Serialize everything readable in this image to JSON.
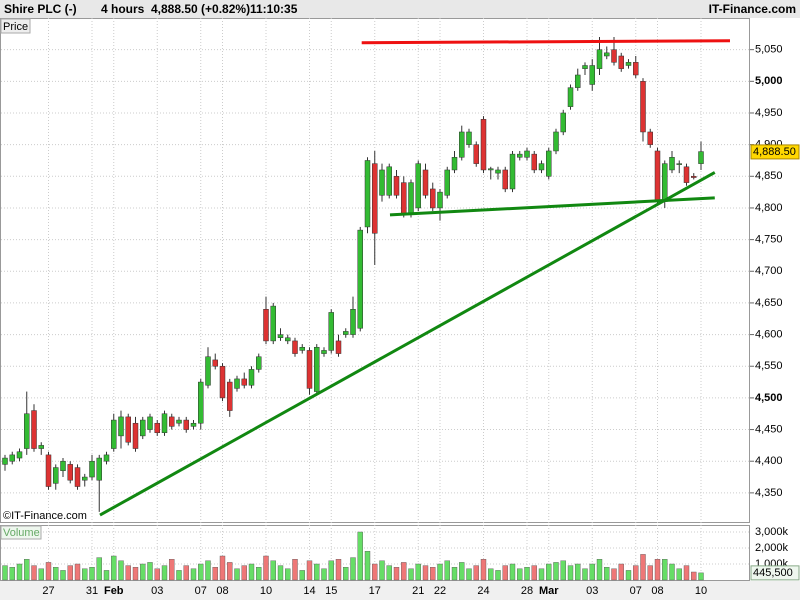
{
  "chart_data": {
    "type": "candlestick",
    "header": {
      "title": "Shire PLC (-)",
      "interval": "4 hours",
      "quote": "4,888.50 (+0.82%)",
      "time": "11:10:35",
      "brand": "IT-Finance.com"
    },
    "panel_label": "Price",
    "volume_label": "Volume",
    "watermark": "©IT-Finance.com",
    "categories": [
      null,
      null,
      null,
      null,
      null,
      null,
      "27",
      null,
      null,
      null,
      null,
      null,
      "31",
      null,
      null,
      "Feb",
      null,
      null,
      null,
      null,
      null,
      "03",
      null,
      null,
      null,
      null,
      null,
      "07",
      null,
      null,
      "08",
      null,
      null,
      null,
      null,
      null,
      "10",
      null,
      null,
      null,
      null,
      null,
      "14",
      null,
      null,
      "15",
      null,
      null,
      null,
      null,
      null,
      "17",
      null,
      null,
      null,
      null,
      null,
      "21",
      null,
      null,
      "22",
      null,
      null,
      null,
      null,
      null,
      "24",
      null,
      null,
      null,
      null,
      null,
      "28",
      null,
      null,
      "Mar",
      null,
      null,
      null,
      null,
      null,
      "03",
      null,
      null,
      null,
      null,
      null,
      "07",
      null,
      null,
      "08",
      null,
      null,
      null,
      null,
      null,
      "10"
    ],
    "open": [
      4395,
      4400,
      4405,
      4420,
      4480,
      4420,
      4410,
      4365,
      4385,
      4395,
      4390,
      4370,
      4375,
      4370,
      4400,
      4420,
      4440,
      4470,
      4460,
      4440,
      4450,
      4460,
      4445,
      4470,
      4460,
      4465,
      4455,
      4460,
      4520,
      4560,
      4550,
      4525,
      4515,
      4530,
      4520,
      4545,
      4640,
      4590,
      4595,
      4590,
      4590,
      4575,
      4575,
      4510,
      4570,
      4575,
      4590,
      4600,
      4600,
      4610,
      4770,
      4870,
      4820,
      4820,
      4850,
      4840,
      4790,
      4800,
      4860,
      4830,
      4800,
      4820,
      4860,
      4880,
      4900,
      4900,
      4940,
      4860,
      4855,
      4860,
      4830,
      4880,
      4880,
      4885,
      4860,
      4850,
      4890,
      4920,
      4960,
      4990,
      5020,
      4995,
      5020,
      5040,
      5050,
      5040,
      5025,
      5030,
      5000,
      4920,
      4890,
      4810,
      4860,
      4870,
      4865,
      4850,
      4870
    ],
    "high": [
      4410,
      4415,
      4420,
      4510,
      4490,
      4430,
      4415,
      4395,
      4405,
      4400,
      4395,
      4380,
      4410,
      4410,
      4415,
      4475,
      4480,
      4475,
      4470,
      4470,
      4475,
      4465,
      4480,
      4475,
      4470,
      4470,
      4465,
      4530,
      4580,
      4570,
      4555,
      4530,
      4535,
      4540,
      4550,
      4570,
      4660,
      4650,
      4610,
      4600,
      4595,
      4585,
      4580,
      4585,
      4580,
      4640,
      4600,
      4610,
      4660,
      4770,
      4880,
      4890,
      4870,
      4870,
      4860,
      4850,
      4845,
      4875,
      4870,
      4840,
      4830,
      4865,
      4890,
      4930,
      4925,
      4905,
      4945,
      4865,
      4865,
      4865,
      4890,
      4890,
      4895,
      4890,
      4875,
      4895,
      4925,
      4955,
      4995,
      5020,
      5030,
      5035,
      5070,
      5055,
      5070,
      5045,
      5035,
      5040,
      5005,
      4925,
      4895,
      4875,
      4890,
      4875,
      4870,
      4855,
      4905
    ],
    "low": [
      4385,
      4395,
      4400,
      4410,
      4415,
      4410,
      4355,
      4355,
      4375,
      4365,
      4355,
      4360,
      4370,
      4320,
      4395,
      4415,
      4420,
      4425,
      4415,
      4435,
      4445,
      4440,
      4440,
      4450,
      4455,
      4445,
      4450,
      4450,
      4515,
      4545,
      4495,
      4470,
      4510,
      4515,
      4515,
      4540,
      4585,
      4585,
      4590,
      4585,
      4565,
      4570,
      4505,
      4505,
      4565,
      4570,
      4565,
      4595,
      4595,
      4605,
      4760,
      4710,
      4810,
      4815,
      4815,
      4785,
      4785,
      4795,
      4815,
      4795,
      4780,
      4815,
      4855,
      4875,
      4895,
      4865,
      4855,
      4845,
      4845,
      4825,
      4825,
      4875,
      4875,
      4855,
      4855,
      4845,
      4885,
      4915,
      4955,
      4985,
      5010,
      4985,
      5010,
      5035,
      5025,
      5015,
      5020,
      5005,
      4905,
      4895,
      4805,
      4800,
      4855,
      4855,
      4835,
      4845,
      4860
    ],
    "close": [
      4405,
      4410,
      4415,
      4475,
      4420,
      4425,
      4360,
      4390,
      4400,
      4370,
      4360,
      4375,
      4400,
      4405,
      4410,
      4465,
      4470,
      4430,
      4420,
      4465,
      4470,
      4445,
      4475,
      4455,
      4465,
      4450,
      4460,
      4525,
      4565,
      4550,
      4500,
      4480,
      4530,
      4520,
      4545,
      4565,
      4590,
      4645,
      4600,
      4595,
      4570,
      4580,
      4515,
      4580,
      4575,
      4635,
      4570,
      4605,
      4640,
      4765,
      4875,
      4760,
      4860,
      4865,
      4820,
      4790,
      4840,
      4870,
      4820,
      4800,
      4825,
      4860,
      4880,
      4920,
      4920,
      4870,
      4860,
      4862,
      4860,
      4830,
      4885,
      4885,
      4890,
      4860,
      4870,
      4890,
      4920,
      4950,
      4990,
      5010,
      5025,
      5025,
      5050,
      5045,
      5030,
      5020,
      5030,
      5010,
      4920,
      4900,
      4810,
      4870,
      4880,
      4870,
      4840,
      4848,
      4889
    ],
    "volumes": [
      900000,
      800000,
      1000000,
      1300000,
      900000,
      700000,
      1100000,
      800000,
      600000,
      900000,
      1000000,
      700000,
      800000,
      1400000,
      600000,
      1500000,
      1200000,
      900000,
      800000,
      1000000,
      1100000,
      700000,
      900000,
      1300000,
      600000,
      900000,
      700000,
      1000000,
      1200000,
      800000,
      1500000,
      1100000,
      700000,
      900000,
      1000000,
      800000,
      1500000,
      1200000,
      900000,
      700000,
      1300000,
      600000,
      1200000,
      1000000,
      700000,
      1200000,
      1300000,
      800000,
      1400000,
      3000000,
      1800000,
      1000000,
      1200000,
      900000,
      800000,
      1100000,
      700000,
      1000000,
      900000,
      800000,
      1000000,
      1200000,
      800000,
      1100000,
      700000,
      900000,
      1300000,
      700000,
      600000,
      900000,
      1000000,
      700000,
      800000,
      900000,
      700000,
      1000000,
      1100000,
      1200000,
      900000,
      1000000,
      700000,
      1000000,
      1300000,
      800000,
      700000,
      1000000,
      600000,
      900000,
      1600000,
      900000,
      1300000,
      1300000,
      1000000,
      700000,
      900000,
      500000,
      445500
    ],
    "ylim": [
      4304,
      5100
    ],
    "yticks": [
      {
        "value": 4350,
        "label": "4,350"
      },
      {
        "value": 4400,
        "label": "4,400"
      },
      {
        "value": 4450,
        "label": "4,450"
      },
      {
        "value": 4500,
        "label": "4,500",
        "bold": true
      },
      {
        "value": 4550,
        "label": "4,550"
      },
      {
        "value": 4600,
        "label": "4,600"
      },
      {
        "value": 4650,
        "label": "4,650"
      },
      {
        "value": 4700,
        "label": "4,700"
      },
      {
        "value": 4750,
        "label": "4,750"
      },
      {
        "value": 4800,
        "label": "4,800"
      },
      {
        "value": 4850,
        "label": "4,850"
      },
      {
        "value": 4900,
        "label": "4,900"
      },
      {
        "value": 4950,
        "label": "4,950"
      },
      {
        "value": 5000,
        "label": "5,000",
        "bold": true
      },
      {
        "value": 5050,
        "label": "5,050"
      }
    ],
    "vol_ylim": [
      0,
      3375000
    ],
    "vol_yticks": [
      {
        "value": 1000000,
        "label": "1,000k"
      },
      {
        "value": 2000000,
        "label": "2,000k"
      },
      {
        "value": 3000000,
        "label": "3,000k"
      }
    ],
    "last_price": {
      "value": 4888.5,
      "label": "4,888.50"
    },
    "last_volume": {
      "value": 445500,
      "label": "445,500"
    },
    "up_color": "#33bb33",
    "down_color": "#dd3333",
    "trend_lines": [
      {
        "color": "#ee1111",
        "start": [
          49.2,
          5061
        ],
        "end": [
          100,
          5064
        ]
      },
      {
        "color": "#118811",
        "start": [
          13.1,
          4315
        ],
        "end": [
          97.9,
          4856
        ]
      },
      {
        "color": "#118811",
        "start": [
          53.1,
          4789
        ],
        "end": [
          97.9,
          4816
        ]
      }
    ],
    "grid": true
  }
}
